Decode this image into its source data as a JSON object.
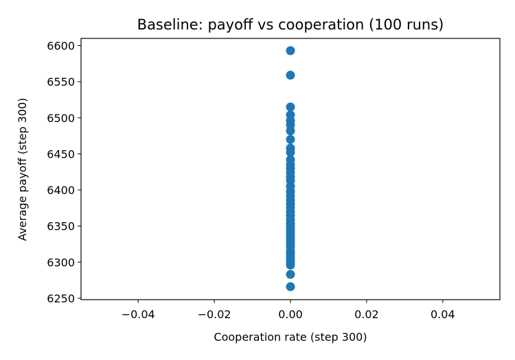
{
  "chart_data": {
    "type": "scatter",
    "title": "Baseline: payoff vs cooperation (100 runs)",
    "xlabel": "Cooperation rate  (step 300)",
    "ylabel": "Average payoff  (step 300)",
    "xlim": [
      -0.055,
      0.055
    ],
    "ylim": [
      6248,
      6610
    ],
    "x_ticks": [
      "−0.04",
      "−0.02",
      "0.00",
      "0.02",
      "0.04"
    ],
    "x_tick_values": [
      -0.04,
      -0.02,
      0.0,
      0.02,
      0.04
    ],
    "y_ticks": [
      "6250",
      "6300",
      "6350",
      "6400",
      "6450",
      "6500",
      "6550",
      "6600"
    ],
    "y_tick_values": [
      6250,
      6300,
      6350,
      6400,
      6450,
      6500,
      6550,
      6600
    ],
    "grid": false,
    "marker_color": "#1f77b4",
    "points": [
      {
        "x": 0.0,
        "y": 6593
      },
      {
        "x": 0.0,
        "y": 6559
      },
      {
        "x": 0.0,
        "y": 6515
      },
      {
        "x": 0.0,
        "y": 6504
      },
      {
        "x": 0.0,
        "y": 6496
      },
      {
        "x": 0.0,
        "y": 6490
      },
      {
        "x": 0.0,
        "y": 6482
      },
      {
        "x": 0.0,
        "y": 6470
      },
      {
        "x": 0.0,
        "y": 6458
      },
      {
        "x": 0.0,
        "y": 6452
      },
      {
        "x": 0.0,
        "y": 6442
      },
      {
        "x": 0.0,
        "y": 6435
      },
      {
        "x": 0.0,
        "y": 6430
      },
      {
        "x": 0.0,
        "y": 6424
      },
      {
        "x": 0.0,
        "y": 6418
      },
      {
        "x": 0.0,
        "y": 6413
      },
      {
        "x": 0.0,
        "y": 6405
      },
      {
        "x": 0.0,
        "y": 6398
      },
      {
        "x": 0.0,
        "y": 6392
      },
      {
        "x": 0.0,
        "y": 6386
      },
      {
        "x": 0.0,
        "y": 6381
      },
      {
        "x": 0.0,
        "y": 6376
      },
      {
        "x": 0.0,
        "y": 6370
      },
      {
        "x": 0.0,
        "y": 6365
      },
      {
        "x": 0.0,
        "y": 6359
      },
      {
        "x": 0.0,
        "y": 6354
      },
      {
        "x": 0.0,
        "y": 6350
      },
      {
        "x": 0.0,
        "y": 6346
      },
      {
        "x": 0.0,
        "y": 6342
      },
      {
        "x": 0.0,
        "y": 6338
      },
      {
        "x": 0.0,
        "y": 6334
      },
      {
        "x": 0.0,
        "y": 6330
      },
      {
        "x": 0.0,
        "y": 6326
      },
      {
        "x": 0.0,
        "y": 6322
      },
      {
        "x": 0.0,
        "y": 6316
      },
      {
        "x": 0.0,
        "y": 6312
      },
      {
        "x": 0.0,
        "y": 6308
      },
      {
        "x": 0.0,
        "y": 6304
      },
      {
        "x": 0.0,
        "y": 6300
      },
      {
        "x": 0.0,
        "y": 6296
      },
      {
        "x": 0.0,
        "y": 6283
      },
      {
        "x": 0.0,
        "y": 6266
      }
    ]
  }
}
